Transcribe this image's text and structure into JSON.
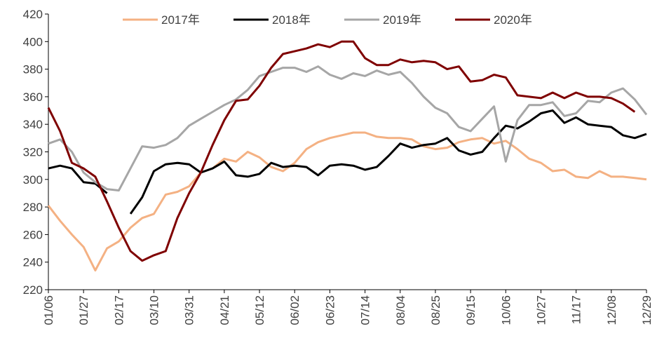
{
  "chart_data": {
    "type": "line",
    "categories": [
      "01/06",
      null,
      null,
      "01/27",
      null,
      null,
      "02/17",
      null,
      null,
      "03/10",
      null,
      null,
      "03/31",
      null,
      null,
      "04/21",
      null,
      null,
      "05/12",
      null,
      null,
      "06/02",
      null,
      null,
      "06/23",
      null,
      null,
      "07/14",
      null,
      null,
      "08/04",
      null,
      null,
      "08/25",
      null,
      null,
      "09/15",
      null,
      null,
      "10/06",
      null,
      null,
      "10/27",
      null,
      null,
      "11/17",
      null,
      null,
      "12/08",
      null,
      null,
      "12/29"
    ],
    "ylim": [
      220,
      420
    ],
    "yticks": [
      220,
      240,
      260,
      280,
      300,
      320,
      340,
      360,
      380,
      400,
      420
    ],
    "legend": "top",
    "series": [
      {
        "name": "2017年",
        "color": "#f4b183",
        "values": [
          281,
          270,
          260,
          251,
          234,
          250,
          255,
          265,
          272,
          275,
          289,
          291,
          295,
          305,
          308,
          315,
          313,
          320,
          316,
          309,
          306,
          312,
          322,
          327,
          330,
          332,
          334,
          334,
          331,
          330,
          330,
          329,
          324,
          322,
          323,
          327,
          329,
          330,
          326,
          328,
          322,
          315,
          312,
          306,
          307,
          302,
          301,
          306,
          302,
          302,
          301,
          300
        ]
      },
      {
        "name": "2018年",
        "color": "#000000",
        "values": [
          308,
          310,
          308,
          298,
          297,
          290,
          null,
          275,
          287,
          306,
          311,
          312,
          311,
          305,
          308,
          313,
          303,
          302,
          304,
          312,
          309,
          310,
          309,
          303,
          310,
          311,
          310,
          307,
          309,
          317,
          326,
          323,
          325,
          326,
          330,
          321,
          318,
          320,
          330,
          339,
          337,
          342,
          348,
          350,
          341,
          345,
          340,
          339,
          338,
          332,
          330,
          333
        ]
      },
      {
        "name": "2019年",
        "color": "#a6a6a6",
        "values": [
          326,
          329,
          320,
          305,
          298,
          293,
          292,
          308,
          324,
          323,
          325,
          330,
          339,
          344,
          349,
          354,
          358,
          365,
          375,
          378,
          381,
          381,
          378,
          382,
          376,
          373,
          377,
          375,
          379,
          376,
          378,
          370,
          360,
          352,
          348,
          338,
          335,
          344,
          353,
          313,
          343,
          354,
          354,
          356,
          346,
          348,
          357,
          356,
          363,
          366,
          358,
          347
        ]
      },
      {
        "name": "2020年",
        "color": "#7f0000",
        "values": [
          352,
          335,
          312,
          308,
          302,
          284,
          265,
          248,
          241,
          245,
          248,
          272,
          290,
          305,
          325,
          343,
          357,
          358,
          368,
          381,
          391,
          393,
          395,
          398,
          396,
          400,
          400,
          388,
          383,
          383,
          387,
          385,
          386,
          385,
          380,
          382,
          371,
          372,
          376,
          374,
          361,
          360,
          359,
          363,
          359,
          363,
          360,
          360,
          359,
          355,
          349,
          null
        ]
      }
    ]
  }
}
